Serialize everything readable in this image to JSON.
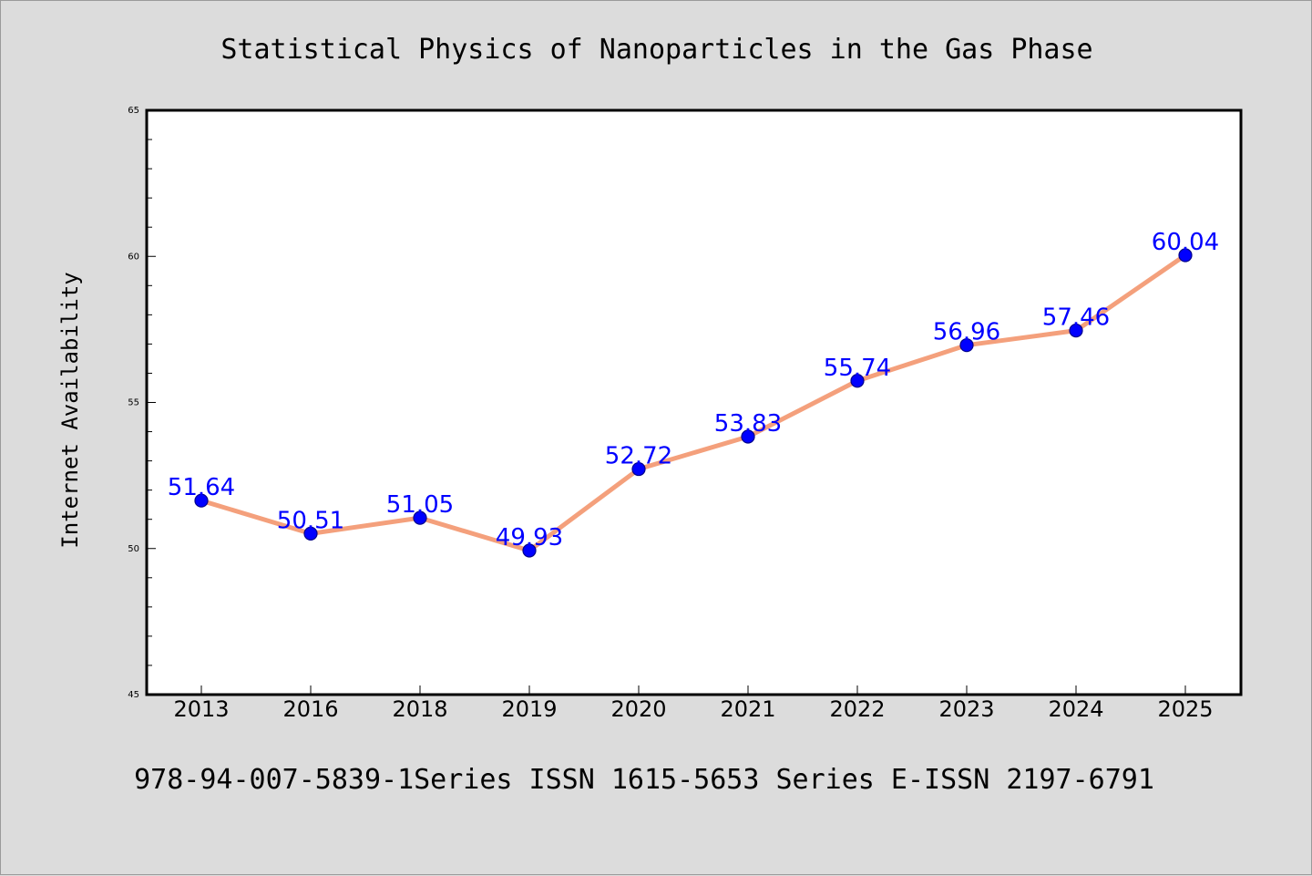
{
  "chart_data": {
    "type": "line",
    "title": "Statistical Physics of Nanoparticles in the Gas Phase",
    "subtitle": "978-94-007-5839-1Series ISSN 1615-5653 Series E-ISSN 2197-6791",
    "xlabel": "",
    "ylabel": "Internet Availability",
    "categories": [
      "2013",
      "2016",
      "2018",
      "2019",
      "2020",
      "2021",
      "2022",
      "2023",
      "2024",
      "2025"
    ],
    "series": [
      {
        "values": [
          51.64,
          50.51,
          51.05,
          49.93,
          52.72,
          53.83,
          55.74,
          56.96,
          57.46,
          60.04
        ],
        "labels": [
          "51.64",
          "50.51",
          "51.05",
          "49.93",
          "52.72",
          "53.83",
          "55.74",
          "56.96",
          "57.46",
          "60.04"
        ]
      }
    ],
    "ylim": [
      45,
      65
    ],
    "yticks": [
      45,
      50,
      55,
      60,
      65
    ],
    "ytick_labels": [
      "45",
      "50",
      "55",
      "60",
      "65"
    ],
    "y_minor_step": 1,
    "grid": false,
    "legend": "none",
    "colors": {
      "background": "#dcdcdc",
      "plot_background": "#ffffff",
      "line": "#f4a07c",
      "marker": "#0000ff",
      "marker_edge": "#00008b",
      "data_label": "#0000ff",
      "text": "#000000"
    }
  }
}
